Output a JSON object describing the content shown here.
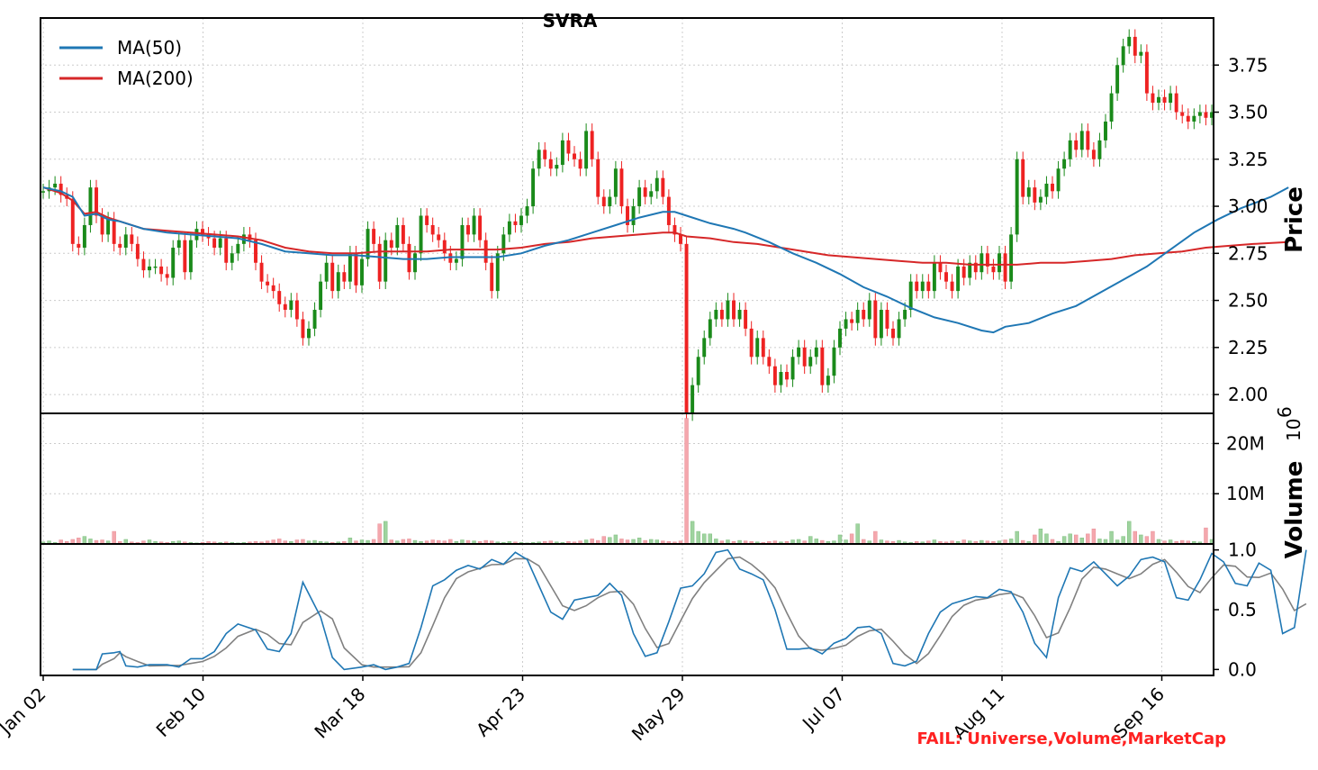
{
  "chart_data": {
    "type": "candlestick",
    "title": "SVRA",
    "x_ticks": [
      "Jan 02",
      "Feb 10",
      "Mar 18",
      "Apr 23",
      "May 29",
      "Jul 07",
      "Aug 11",
      "Sep 16"
    ],
    "status_text": "FAIL: Universe,Volume,MarketCap",
    "colors": {
      "up": "#1a8a1a",
      "down": "#ee2222",
      "ma50": "#1f77b4",
      "ma200": "#d62728",
      "stoch_d": "#808080"
    },
    "price_panel": {
      "ylabel": "Price",
      "ylim": [
        1.9,
        4.0
      ],
      "yticks": [
        "2.00",
        "2.25",
        "2.50",
        "2.75",
        "3.00",
        "3.25",
        "3.50",
        "3.75"
      ],
      "grid": true,
      "legend": {
        "placement": "top-left",
        "entries": [
          "MA(50)",
          "MA(200)"
        ]
      },
      "closes": [
        3.08,
        3.1,
        3.12,
        3.06,
        3.04,
        2.8,
        2.78,
        2.9,
        3.1,
        2.95,
        2.85,
        2.93,
        2.8,
        2.78,
        2.85,
        2.8,
        2.72,
        2.66,
        2.68,
        2.68,
        2.64,
        2.62,
        2.78,
        2.82,
        2.65,
        2.82,
        2.88,
        2.85,
        2.83,
        2.78,
        2.83,
        2.7,
        2.75,
        2.8,
        2.85,
        2.82,
        2.7,
        2.6,
        2.58,
        2.55,
        2.48,
        2.45,
        2.5,
        2.4,
        2.3,
        2.35,
        2.45,
        2.6,
        2.7,
        2.55,
        2.65,
        2.6,
        2.75,
        2.58,
        2.72,
        2.88,
        2.8,
        2.6,
        2.82,
        2.78,
        2.9,
        2.8,
        2.65,
        2.75,
        2.95,
        2.9,
        2.85,
        2.82,
        2.75,
        2.7,
        2.72,
        2.9,
        2.85,
        2.95,
        2.82,
        2.7,
        2.55,
        2.75,
        2.85,
        2.92,
        2.9,
        2.95,
        3.0,
        3.2,
        3.3,
        3.25,
        3.2,
        3.22,
        3.35,
        3.28,
        3.25,
        3.2,
        3.4,
        3.25,
        3.05,
        3.0,
        3.05,
        3.2,
        3.0,
        2.9,
        3.0,
        3.1,
        3.05,
        3.08,
        3.15,
        3.05,
        2.9,
        2.85,
        2.8,
        1.9,
        2.05,
        2.2,
        2.3,
        2.4,
        2.45,
        2.4,
        2.5,
        2.4,
        2.45,
        2.35,
        2.2,
        2.3,
        2.2,
        2.15,
        2.05,
        2.12,
        2.08,
        2.2,
        2.25,
        2.15,
        2.2,
        2.25,
        2.05,
        2.1,
        2.25,
        2.35,
        2.4,
        2.38,
        2.45,
        2.4,
        2.5,
        2.3,
        2.45,
        2.35,
        2.3,
        2.4,
        2.45,
        2.6,
        2.55,
        2.6,
        2.55,
        2.7,
        2.65,
        2.6,
        2.55,
        2.68,
        2.62,
        2.7,
        2.65,
        2.75,
        2.68,
        2.65,
        2.75,
        2.6,
        2.85,
        3.25,
        3.05,
        3.1,
        3.02,
        3.05,
        3.12,
        3.08,
        3.2,
        3.25,
        3.35,
        3.3,
        3.4,
        3.3,
        3.25,
        3.35,
        3.45,
        3.6,
        3.75,
        3.85,
        3.9,
        3.8,
        3.82,
        3.6,
        3.55,
        3.58,
        3.55,
        3.6,
        3.5,
        3.48,
        3.45,
        3.48,
        3.5,
        3.47,
        3.5
      ],
      "ma50": [
        [
          0,
          3.1
        ],
        [
          3,
          3.08
        ],
        [
          5,
          3.05
        ],
        [
          7,
          2.95
        ],
        [
          9,
          2.96
        ],
        [
          11,
          2.93
        ],
        [
          13,
          2.92
        ],
        [
          17,
          2.88
        ],
        [
          21,
          2.86
        ],
        [
          25,
          2.85
        ],
        [
          29,
          2.84
        ],
        [
          33,
          2.83
        ],
        [
          37,
          2.8
        ],
        [
          41,
          2.76
        ],
        [
          45,
          2.75
        ],
        [
          49,
          2.74
        ],
        [
          53,
          2.74
        ],
        [
          57,
          2.73
        ],
        [
          61,
          2.72
        ],
        [
          65,
          2.72
        ],
        [
          69,
          2.73
        ],
        [
          73,
          2.73
        ],
        [
          77,
          2.73
        ],
        [
          81,
          2.75
        ],
        [
          85,
          2.79
        ],
        [
          89,
          2.82
        ],
        [
          93,
          2.86
        ],
        [
          97,
          2.9
        ],
        [
          101,
          2.94
        ],
        [
          105,
          2.97
        ],
        [
          107,
          2.97
        ],
        [
          109,
          2.95
        ],
        [
          113,
          2.91
        ],
        [
          117,
          2.88
        ],
        [
          119,
          2.86
        ],
        [
          123,
          2.81
        ],
        [
          127,
          2.75
        ],
        [
          131,
          2.7
        ],
        [
          135,
          2.64
        ],
        [
          139,
          2.57
        ],
        [
          143,
          2.52
        ],
        [
          147,
          2.46
        ],
        [
          151,
          2.41
        ],
        [
          155,
          2.38
        ],
        [
          159,
          2.34
        ],
        [
          161,
          2.33
        ],
        [
          163,
          2.36
        ],
        [
          167,
          2.38
        ],
        [
          171,
          2.43
        ],
        [
          175,
          2.47
        ],
        [
          179,
          2.54
        ],
        [
          183,
          2.61
        ],
        [
          187,
          2.68
        ],
        [
          191,
          2.77
        ],
        [
          195,
          2.86
        ],
        [
          199,
          2.93
        ],
        [
          203,
          2.99
        ],
        [
          208,
          3.05
        ],
        [
          211,
          3.1
        ]
      ],
      "ma200": [
        [
          0,
          3.1
        ],
        [
          3,
          3.07
        ],
        [
          5,
          3.03
        ],
        [
          7,
          2.96
        ],
        [
          9,
          2.97
        ],
        [
          11,
          2.94
        ],
        [
          13,
          2.92
        ],
        [
          17,
          2.88
        ],
        [
          21,
          2.87
        ],
        [
          25,
          2.86
        ],
        [
          29,
          2.85
        ],
        [
          33,
          2.84
        ],
        [
          37,
          2.82
        ],
        [
          41,
          2.78
        ],
        [
          45,
          2.76
        ],
        [
          49,
          2.75
        ],
        [
          53,
          2.75
        ],
        [
          57,
          2.76
        ],
        [
          61,
          2.76
        ],
        [
          65,
          2.76
        ],
        [
          69,
          2.77
        ],
        [
          73,
          2.77
        ],
        [
          77,
          2.77
        ],
        [
          81,
          2.78
        ],
        [
          85,
          2.8
        ],
        [
          89,
          2.81
        ],
        [
          93,
          2.83
        ],
        [
          97,
          2.84
        ],
        [
          101,
          2.85
        ],
        [
          105,
          2.86
        ],
        [
          107,
          2.86
        ],
        [
          109,
          2.84
        ],
        [
          113,
          2.83
        ],
        [
          117,
          2.81
        ],
        [
          121,
          2.8
        ],
        [
          125,
          2.78
        ],
        [
          129,
          2.76
        ],
        [
          133,
          2.74
        ],
        [
          137,
          2.73
        ],
        [
          141,
          2.72
        ],
        [
          145,
          2.71
        ],
        [
          149,
          2.7
        ],
        [
          153,
          2.7
        ],
        [
          157,
          2.69
        ],
        [
          161,
          2.69
        ],
        [
          165,
          2.69
        ],
        [
          169,
          2.7
        ],
        [
          173,
          2.7
        ],
        [
          177,
          2.71
        ],
        [
          181,
          2.72
        ],
        [
          185,
          2.74
        ],
        [
          189,
          2.75
        ],
        [
          193,
          2.76
        ],
        [
          197,
          2.78
        ],
        [
          201,
          2.79
        ],
        [
          205,
          2.8
        ],
        [
          211,
          2.81
        ]
      ]
    },
    "volume_panel": {
      "ylabel": "Volume",
      "scale_label": "10^6",
      "yticks": [
        "10M",
        "20M"
      ],
      "ylim": [
        0,
        26
      ],
      "values": [
        0.4,
        0.6,
        0.3,
        0.8,
        0.5,
        0.9,
        1.2,
        1.5,
        1.0,
        0.7,
        0.8,
        0.6,
        2.5,
        0.5,
        0.9,
        0.4,
        0.3,
        0.6,
        0.8,
        0.5,
        0.4,
        0.3,
        0.5,
        0.6,
        0.4,
        0.3,
        0.2,
        0.3,
        0.5,
        0.4,
        0.3,
        0.4,
        0.3,
        0.2,
        0.3,
        0.4,
        0.5,
        0.4,
        0.6,
        0.8,
        1.0,
        0.6,
        0.5,
        0.8,
        0.9,
        0.6,
        0.7,
        0.5,
        0.4,
        0.3,
        0.4,
        0.5,
        1.2,
        0.6,
        0.8,
        0.7,
        0.9,
        4.0,
        4.5,
        0.8,
        0.6,
        0.9,
        1.0,
        0.7,
        0.5,
        0.6,
        0.8,
        0.7,
        0.6,
        0.9,
        0.5,
        0.8,
        0.7,
        0.6,
        0.5,
        0.7,
        0.6,
        0.4,
        0.3,
        0.5,
        0.4,
        0.3,
        0.2,
        0.3,
        0.4,
        0.5,
        0.6,
        0.4,
        0.3,
        0.5,
        0.4,
        0.6,
        0.8,
        1.0,
        0.7,
        1.5,
        1.3,
        1.8,
        1.0,
        0.8,
        0.9,
        1.2,
        0.7,
        0.9,
        0.8,
        0.6,
        0.5,
        0.4,
        0.6,
        25.0,
        4.5,
        2.5,
        2.0,
        2.0,
        1.0,
        0.6,
        0.8,
        0.5,
        0.7,
        0.6,
        0.5,
        0.4,
        0.3,
        0.5,
        0.6,
        0.4,
        0.5,
        0.8,
        0.9,
        0.6,
        1.5,
        1.0,
        0.7,
        0.5,
        0.6,
        1.8,
        0.8,
        2.0,
        4.0,
        0.9,
        0.6,
        2.5,
        0.8,
        0.6,
        0.5,
        0.7,
        0.4,
        0.3,
        0.5,
        0.4,
        0.6,
        0.8,
        0.5,
        0.4,
        0.6,
        0.5,
        0.8,
        0.6,
        0.5,
        0.7,
        0.6,
        0.5,
        0.6,
        0.8,
        1.0,
        2.5,
        0.7,
        0.5,
        1.8,
        3.0,
        2.0,
        0.9,
        0.5,
        1.5,
        2.0,
        1.8,
        1.2,
        2.0,
        3.0,
        1.0,
        0.9,
        2.5,
        0.8,
        1.5,
        4.5,
        2.5,
        1.8,
        1.5,
        2.5,
        0.9,
        0.6,
        0.8,
        0.5,
        0.7,
        0.6,
        0.5,
        0.4,
        3.2,
        0.9,
        0.6,
        0.7,
        0.8,
        0.5,
        0.4,
        0.6,
        0.5,
        0.3,
        0.5,
        0.4,
        0.6
      ]
    },
    "stoch_panel": {
      "yticks": [
        "0.0",
        "0.5",
        "1.0"
      ],
      "ylim": [
        -0.05,
        1.05
      ],
      "k": [
        [
          5,
          0.0
        ],
        [
          9,
          0.0
        ],
        [
          10,
          0.13
        ],
        [
          12,
          0.14
        ],
        [
          13,
          0.15
        ],
        [
          14,
          0.03
        ],
        [
          16,
          0.02
        ],
        [
          18,
          0.04
        ],
        [
          21,
          0.04
        ],
        [
          23,
          0.02
        ],
        [
          25,
          0.09
        ],
        [
          27,
          0.09
        ],
        [
          29,
          0.15
        ],
        [
          31,
          0.3
        ],
        [
          33,
          0.38
        ],
        [
          36,
          0.33
        ],
        [
          38,
          0.17
        ],
        [
          40,
          0.15
        ],
        [
          42,
          0.3
        ],
        [
          44,
          0.73
        ],
        [
          47,
          0.44
        ],
        [
          49,
          0.1
        ],
        [
          51,
          0.0
        ],
        [
          54,
          0.02
        ],
        [
          56,
          0.04
        ],
        [
          58,
          0.0
        ],
        [
          60,
          0.02
        ],
        [
          62,
          0.05
        ],
        [
          64,
          0.35
        ],
        [
          66,
          0.7
        ],
        [
          68,
          0.75
        ],
        [
          70,
          0.83
        ],
        [
          72,
          0.87
        ],
        [
          74,
          0.84
        ],
        [
          76,
          0.92
        ],
        [
          78,
          0.88
        ],
        [
          80,
          0.98
        ],
        [
          82,
          0.92
        ],
        [
          84,
          0.7
        ],
        [
          86,
          0.48
        ],
        [
          88,
          0.42
        ],
        [
          90,
          0.58
        ],
        [
          92,
          0.6
        ],
        [
          94,
          0.62
        ],
        [
          96,
          0.72
        ],
        [
          98,
          0.62
        ],
        [
          100,
          0.3
        ],
        [
          102,
          0.11
        ],
        [
          104,
          0.14
        ],
        [
          106,
          0.4
        ],
        [
          108,
          0.68
        ],
        [
          110,
          0.7
        ],
        [
          112,
          0.8
        ],
        [
          114,
          0.98
        ],
        [
          116,
          1.0
        ],
        [
          118,
          0.84
        ],
        [
          120,
          0.8
        ],
        [
          122,
          0.75
        ],
        [
          124,
          0.5
        ],
        [
          126,
          0.17
        ],
        [
          128,
          0.17
        ],
        [
          130,
          0.18
        ],
        [
          132,
          0.13
        ],
        [
          134,
          0.22
        ],
        [
          136,
          0.26
        ],
        [
          138,
          0.35
        ],
        [
          140,
          0.36
        ],
        [
          142,
          0.3
        ],
        [
          144,
          0.05
        ],
        [
          146,
          0.03
        ],
        [
          148,
          0.07
        ],
        [
          150,
          0.3
        ],
        [
          152,
          0.48
        ],
        [
          154,
          0.55
        ],
        [
          156,
          0.58
        ],
        [
          158,
          0.61
        ],
        [
          160,
          0.6
        ],
        [
          162,
          0.67
        ],
        [
          164,
          0.65
        ],
        [
          166,
          0.48
        ],
        [
          168,
          0.22
        ],
        [
          170,
          0.1
        ],
        [
          172,
          0.6
        ],
        [
          174,
          0.85
        ],
        [
          176,
          0.82
        ],
        [
          178,
          0.9
        ],
        [
          180,
          0.8
        ],
        [
          182,
          0.7
        ],
        [
          184,
          0.78
        ],
        [
          186,
          0.92
        ],
        [
          188,
          0.94
        ],
        [
          190,
          0.9
        ],
        [
          192,
          0.6
        ],
        [
          194,
          0.58
        ],
        [
          196,
          0.75
        ],
        [
          198,
          0.97
        ],
        [
          200,
          0.9
        ],
        [
          202,
          0.72
        ],
        [
          204,
          0.7
        ],
        [
          206,
          0.89
        ],
        [
          208,
          0.83
        ],
        [
          210,
          0.3
        ],
        [
          212,
          0.35
        ],
        [
          214,
          1.0
        ]
      ]
    }
  }
}
